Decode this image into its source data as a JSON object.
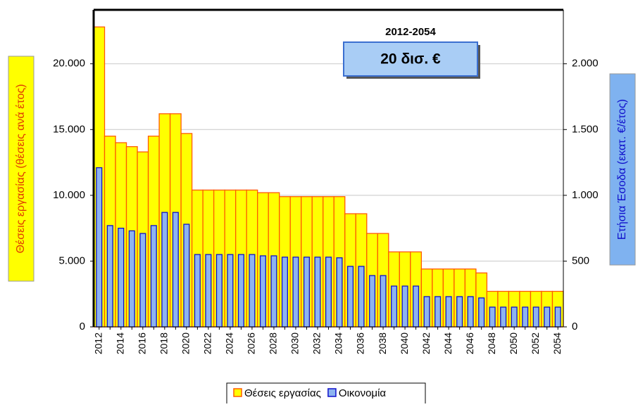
{
  "chart_data": {
    "type": "bar",
    "categories": [
      "2012",
      null,
      "2014",
      null,
      "2016",
      null,
      "2018",
      null,
      "2020",
      null,
      "2022",
      null,
      "2024",
      null,
      "2026",
      null,
      "2028",
      null,
      "2030",
      null,
      "2032",
      null,
      "2034",
      null,
      "2036",
      null,
      "2038",
      null,
      "2040",
      null,
      "2042",
      null,
      "2044",
      null,
      "2046",
      null,
      "2048",
      null,
      "2050",
      null,
      "2052",
      null,
      "2054"
    ],
    "series": [
      {
        "name": "Θέσεις εργασίας",
        "color": "#ffff00",
        "edge": "#ff5a00",
        "values": [
          22800,
          14500,
          14000,
          13700,
          13300,
          14500,
          16200,
          16200,
          14700,
          10400,
          10400,
          10400,
          10400,
          10400,
          10400,
          10200,
          10200,
          9900,
          9900,
          9900,
          9900,
          9900,
          9900,
          8600,
          8600,
          7100,
          7100,
          5700,
          5700,
          5700,
          4400,
          4400,
          4400,
          4400,
          4400,
          4100,
          2700,
          2700,
          2700,
          2700,
          2700,
          2700,
          2700
        ]
      },
      {
        "name": "Οικονομία",
        "color": "#8db4f0",
        "edge": "#1010cc",
        "axis": "y2",
        "values": [
          1210,
          770,
          750,
          730,
          710,
          770,
          870,
          870,
          780,
          550,
          550,
          550,
          550,
          550,
          550,
          540,
          540,
          530,
          530,
          530,
          530,
          530,
          525,
          460,
          460,
          390,
          390,
          310,
          310,
          310,
          230,
          230,
          230,
          230,
          230,
          220,
          150,
          150,
          150,
          150,
          150,
          150,
          150
        ]
      }
    ],
    "ylabel": "Θέσεις εργασίας (θέσεις ανά έτος)",
    "y2label": "Ετήσια Έσοδα (εκατ. €/έτος)",
    "ylim": [
      0,
      24100
    ],
    "yticks": [
      0,
      {
        "value": 5000,
        "label": "5.000"
      },
      {
        "value": 10000,
        "label": "10.000"
      },
      {
        "value": 15000,
        "label": "15.000"
      },
      {
        "value": 20000,
        "label": "20.000"
      }
    ],
    "y2lim": [
      0,
      2410
    ],
    "y2ticks": [
      0,
      500,
      {
        "value": 1000,
        "label": "1.000"
      },
      {
        "value": 1500,
        "label": "1.500"
      },
      {
        "value": 2000,
        "label": "2.000"
      }
    ],
    "grid": true,
    "annotation": {
      "period": "2012-2054",
      "total": "20 δισ. €"
    },
    "legend": "bottom"
  }
}
